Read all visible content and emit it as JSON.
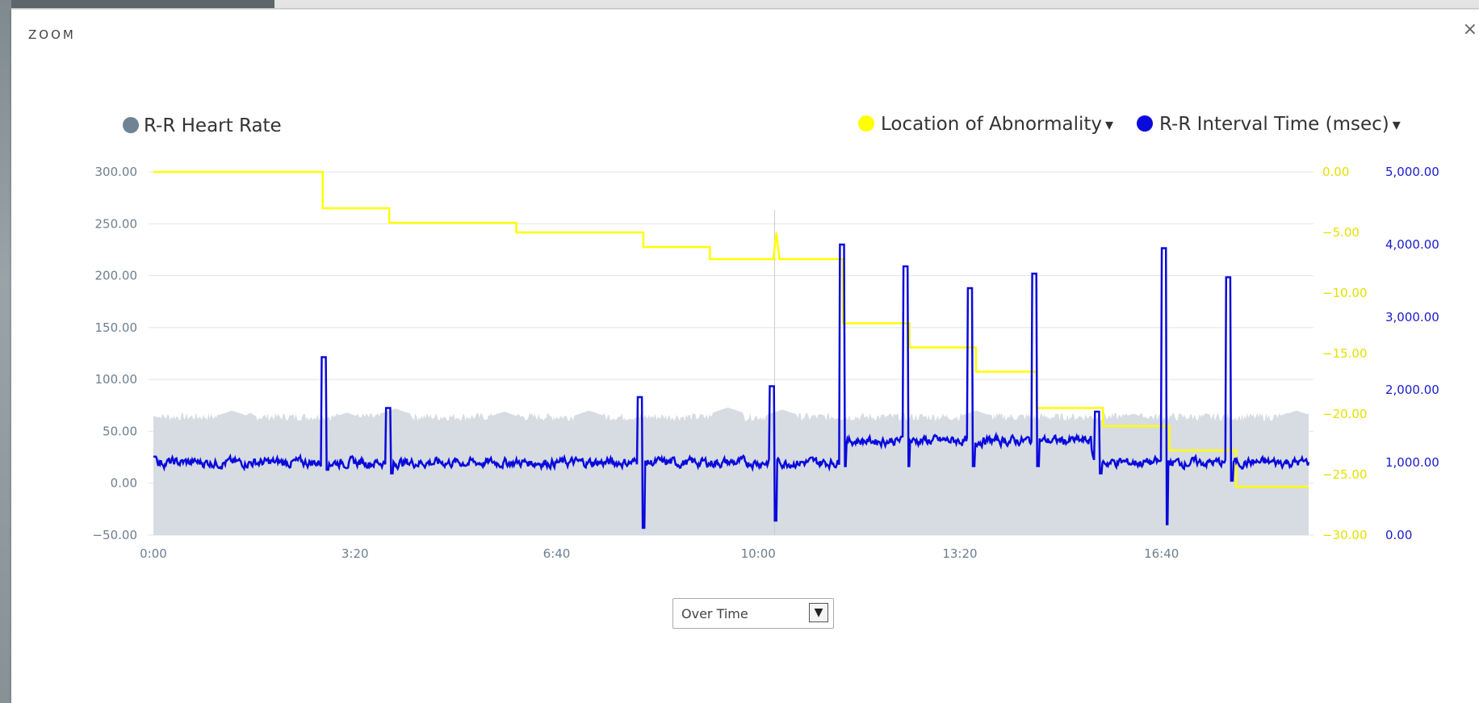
{
  "modal": {
    "title": "ZOOM",
    "close_label": "×"
  },
  "dropdown": {
    "selected": "Over Time"
  },
  "colors": {
    "heart_rate": "#6e8394",
    "abnormality": "#ffff00",
    "rr_interval": "#0a0adc",
    "area_fill": "#d7dce2"
  },
  "legend": {
    "heart_rate": "R-R Heart Rate",
    "abnormality": "Location of Abnormality",
    "rr_interval": "R-R Interval Time (msec)",
    "dropdown_marker": "▾"
  },
  "chart_data": {
    "type": "line",
    "x_range": [
      "0:00",
      "19:06"
    ],
    "x_ticks": [
      "0:00",
      "3:20",
      "6:40",
      "10:00",
      "13:20",
      "16:40"
    ],
    "y_left": {
      "ticks": [
        "300.00",
        "250.00",
        "200.00",
        "150.00",
        "100.00",
        "50.00",
        "0.00",
        "−50.00"
      ],
      "range": [
        -50,
        300
      ]
    },
    "y_right_yellow": {
      "ticks": [
        "0.00",
        "−5.00",
        "−10.00",
        "−15.00",
        "−20.00",
        "−25.00",
        "−30.00"
      ],
      "range": [
        -30,
        0
      ]
    },
    "y_right_blue": {
      "ticks": [
        "5,000.00",
        "4,000.00",
        "3,000.00",
        "2,000.00",
        "1,000.00",
        "0.00"
      ],
      "range": [
        0,
        5000
      ]
    },
    "grid": true,
    "series": [
      {
        "name": "R-R Heart Rate",
        "axis": "left",
        "baseline": 60,
        "spikes": [
          [
            0.0,
            65
          ],
          [
            1.3,
            70
          ],
          [
            3.2,
            68
          ],
          [
            4.0,
            72
          ],
          [
            5.8,
            69
          ],
          [
            7.2,
            70
          ],
          [
            9.5,
            73
          ],
          [
            10.4,
            71
          ],
          [
            13.6,
            70
          ],
          [
            16.2,
            67
          ],
          [
            18.9,
            70
          ]
        ]
      },
      {
        "name": "Location of Abnormality",
        "axis": "right_yellow",
        "steps": [
          [
            0.0,
            0.0
          ],
          [
            2.8,
            -3.0
          ],
          [
            3.9,
            -4.2
          ],
          [
            6.0,
            -5.0
          ],
          [
            8.1,
            -6.2
          ],
          [
            9.2,
            -7.2
          ],
          [
            10.3,
            -7.2
          ],
          [
            11.4,
            -12.5
          ],
          [
            12.5,
            -14.5
          ],
          [
            13.6,
            -16.5
          ],
          [
            14.6,
            -19.5
          ],
          [
            15.7,
            -21.0
          ],
          [
            16.8,
            -23.0
          ],
          [
            17.9,
            -26.0
          ]
        ],
        "end": 19.1
      },
      {
        "name": "R-R Interval Time (msec)",
        "axis": "right_blue",
        "baseline": 1000,
        "spikes": [
          [
            2.82,
            2450,
            900
          ],
          [
            3.88,
            1750,
            850
          ],
          [
            8.04,
            1900,
            100
          ],
          [
            10.23,
            2050,
            200
          ],
          [
            11.38,
            4000,
            950
          ],
          [
            12.43,
            3700,
            950
          ],
          [
            13.5,
            3400,
            950
          ],
          [
            14.56,
            3600,
            950
          ],
          [
            15.6,
            1700,
            850
          ],
          [
            16.7,
            3950,
            150
          ],
          [
            17.77,
            3550,
            750
          ]
        ]
      }
    ]
  }
}
